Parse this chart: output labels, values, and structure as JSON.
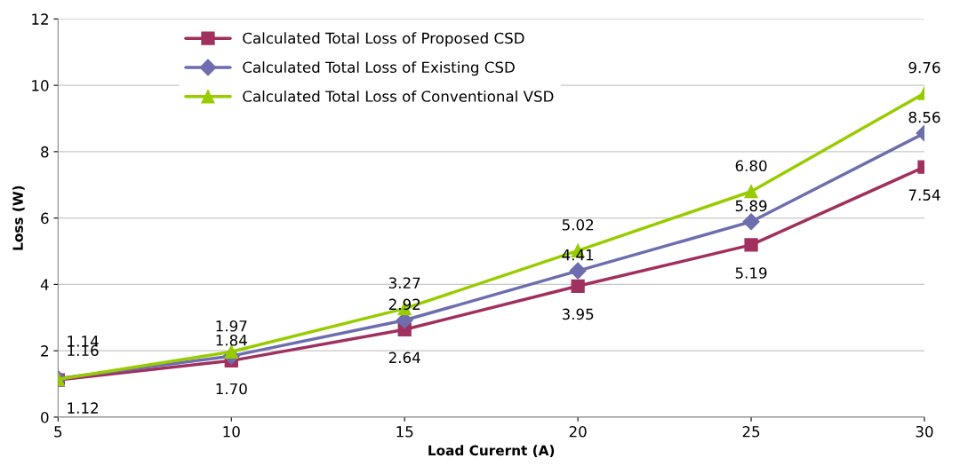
{
  "chart_data": {
    "type": "line",
    "xlabel": "Load Curernt (A)",
    "ylabel": "Loss (W)",
    "x": [
      5,
      10,
      15,
      20,
      25,
      30
    ],
    "series": [
      {
        "name": "Calculated Total Loss of Proposed CSD",
        "color": "#a0305e",
        "marker": "square",
        "values": [
          1.12,
          1.7,
          2.64,
          3.95,
          5.19,
          7.54
        ],
        "value_labels": [
          "1.12",
          "1.70",
          "2.64",
          "3.95",
          "5.19",
          "7.54"
        ]
      },
      {
        "name": "Calculated Total Loss of Existing CSD",
        "color": "#6e6eae",
        "marker": "diamond",
        "values": [
          1.16,
          1.84,
          2.92,
          4.41,
          5.89,
          8.56
        ],
        "value_labels": [
          "1.16",
          "1.84",
          "2.92",
          "4.41",
          "5.89",
          "8.56"
        ]
      },
      {
        "name": "Calculated Total Loss of Conventional VSD",
        "color": "#99cc00",
        "marker": "triangle",
        "values": [
          1.14,
          1.97,
          3.27,
          5.02,
          6.8,
          9.76
        ],
        "value_labels": [
          "1.14",
          "1.97",
          "3.27",
          "5.02",
          "6.80",
          "9.76"
        ]
      }
    ],
    "xlim": [
      5,
      30
    ],
    "xticks": [
      5,
      10,
      15,
      20,
      25,
      30
    ],
    "ylim": [
      0,
      12
    ],
    "yticks": [
      0,
      2,
      4,
      6,
      8,
      10,
      12
    ],
    "grid": "y",
    "legend": "top",
    "line_style": "solid"
  }
}
